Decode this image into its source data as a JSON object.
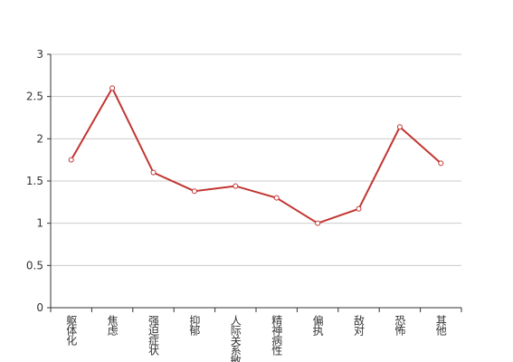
{
  "chart_data": {
    "type": "line",
    "categories": [
      "躯体化",
      "焦虑",
      "强迫症状",
      "抑郁",
      "人际关系敏感",
      "精神病性",
      "偏执",
      "敌对",
      "恐怖",
      "其他"
    ],
    "values": [
      1.75,
      2.6,
      1.6,
      1.38,
      1.44,
      1.3,
      1.0,
      1.17,
      2.14,
      1.71
    ],
    "color": "#c23531",
    "ylim": [
      0,
      3
    ],
    "yticks": [
      0,
      0.5,
      1,
      1.5,
      2,
      2.5,
      3
    ],
    "grid": true
  }
}
